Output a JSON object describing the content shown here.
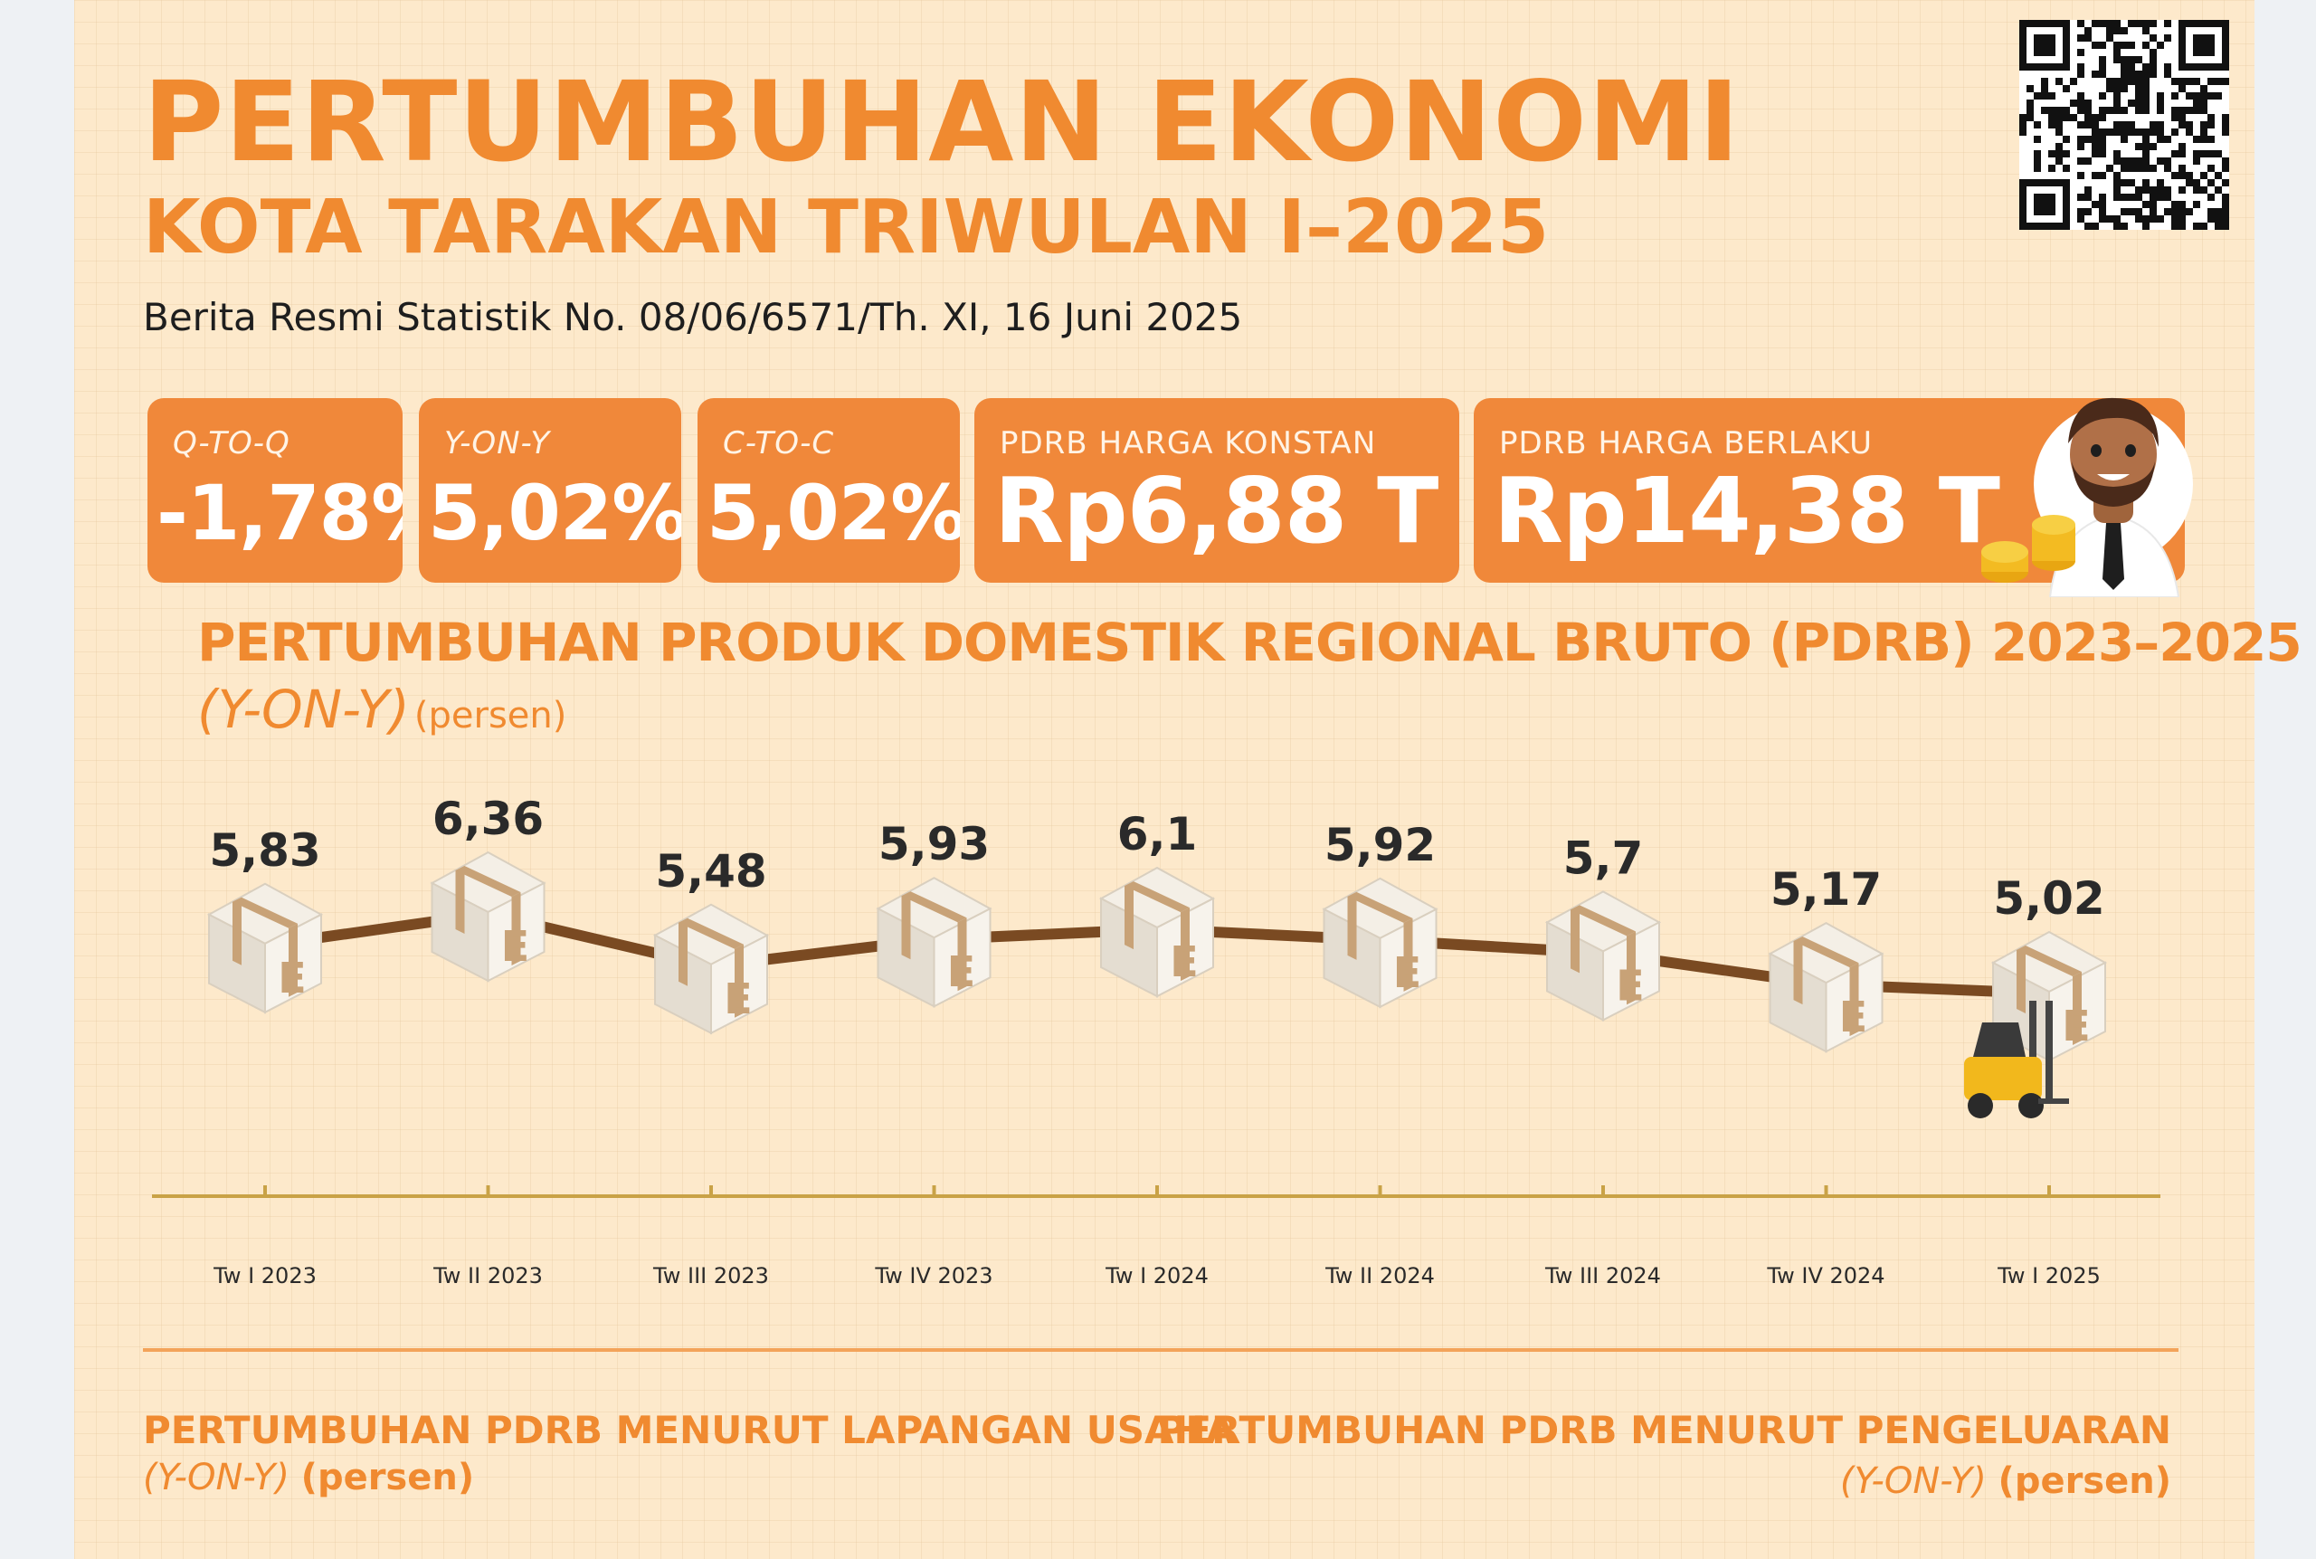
{
  "header": {
    "title": "PERTUMBUHAN EKONOMI",
    "subtitle": "KOTA TARAKAN TRIWULAN I–2025",
    "release": "Berita Resmi Statistik No. 08/06/6571/Th. XI, 16 Juni 2025"
  },
  "cards": [
    {
      "label": "Q-TO-Q",
      "value": "-1,78%"
    },
    {
      "label": "Y-ON-Y",
      "value": "5,02%"
    },
    {
      "label": "C-TO-C",
      "value": "5,02%"
    },
    {
      "label": "PDRB HARGA KONSTAN",
      "value": "Rp6,88 T"
    },
    {
      "label": "PDRB HARGA BERLAKU",
      "value": "Rp14,38 T"
    }
  ],
  "chart_heading": {
    "title": "PERTUMBUHAN PRODUK DOMESTIK REGIONAL BRUTO (PDRB) 2023–2025",
    "subtitle_italic": "(Y-ON-Y)",
    "subtitle_unit": "(persen)"
  },
  "chart_data": {
    "type": "line",
    "categories": [
      "Tw I 2023",
      "Tw II 2023",
      "Tw III 2023",
      "Tw IV 2023",
      "Tw I 2024",
      "Tw II 2024",
      "Tw III 2024",
      "Tw IV 2024",
      "Tw I 2025"
    ],
    "values": [
      5.83,
      6.36,
      5.48,
      5.93,
      6.1,
      5.92,
      5.7,
      5.17,
      5.02
    ],
    "value_labels": [
      "5,83",
      "6,36",
      "5,48",
      "5,93",
      "6,1",
      "5,92",
      "5,7",
      "5,17",
      "5,02"
    ],
    "line_color": "#7a4a22",
    "axis_color": "#c9a246",
    "marker": "cardboard-box"
  },
  "sections": {
    "left": {
      "title": "PERTUMBUHAN PDRB MENURUT LAPANGAN USAHA",
      "sub_italic": "(Y-ON-Y)",
      "sub_unit": "(persen)"
    },
    "right": {
      "title": "PERTUMBUHAN PDRB MENURUT PENGELUARAN",
      "sub_italic": "(Y-ON-Y)",
      "sub_unit": "(persen)"
    }
  },
  "colors": {
    "accent": "#f08a30",
    "card": "#f0883a",
    "background": "#fde9cb"
  }
}
